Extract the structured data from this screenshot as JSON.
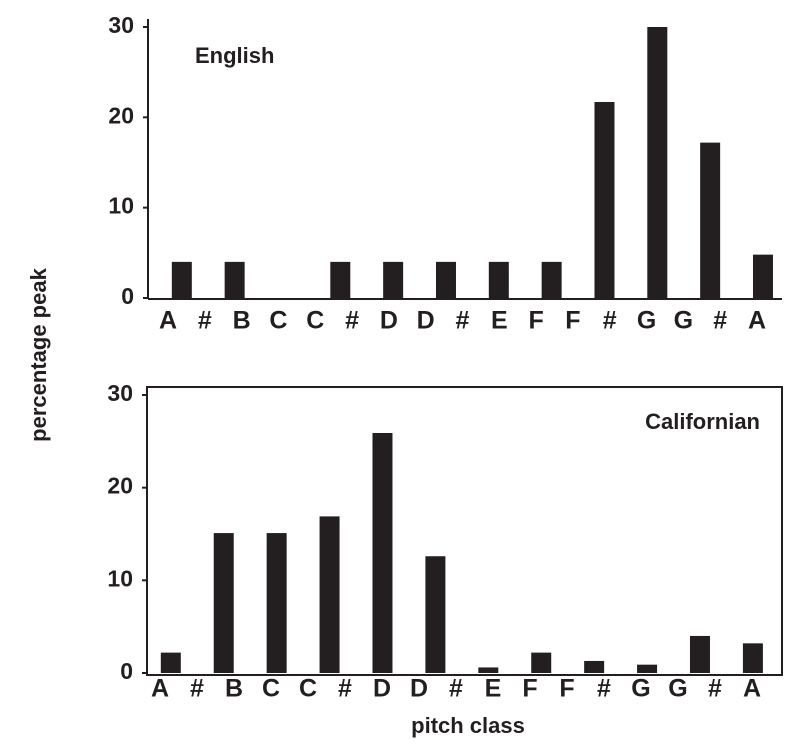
{
  "ylabel": "percentage peak",
  "xlabel": "pitch class",
  "chart_data": [
    {
      "type": "bar",
      "annotation": "English",
      "color": "#231f20",
      "categories": [
        null,
        null,
        null,
        null,
        null,
        null,
        null,
        null,
        null,
        null,
        null,
        null
      ],
      "values": [
        4,
        4,
        0,
        4,
        4,
        4,
        4,
        4,
        21.7,
        30,
        17.2,
        4.8
      ],
      "xtick_labels": [
        "A",
        "#",
        "B",
        "C",
        "C",
        "#",
        "D",
        "D",
        "#",
        "E",
        "F",
        "F",
        "#",
        "G",
        "G",
        "#",
        "A"
      ],
      "ylim": [
        0,
        30
      ],
      "yticks": [
        0,
        10,
        20,
        30
      ],
      "frame": false
    },
    {
      "type": "bar",
      "annotation": "Californian",
      "color": "#231f20",
      "categories": [
        null,
        null,
        null,
        null,
        null,
        null,
        null,
        null,
        null,
        null,
        null,
        null
      ],
      "values": [
        2.2,
        15.1,
        15.1,
        16.9,
        25.9,
        12.6,
        0.6,
        2.2,
        1.3,
        0.9,
        4,
        3.2
      ],
      "xtick_labels": [
        "A",
        "#",
        "B",
        "C",
        "C",
        "#",
        "D",
        "D",
        "#",
        "E",
        "F",
        "F",
        "#",
        "G",
        "G",
        "#",
        "A"
      ],
      "ylim": [
        0,
        30
      ],
      "yticks": [
        0,
        10,
        20,
        30
      ],
      "frame": true
    }
  ]
}
